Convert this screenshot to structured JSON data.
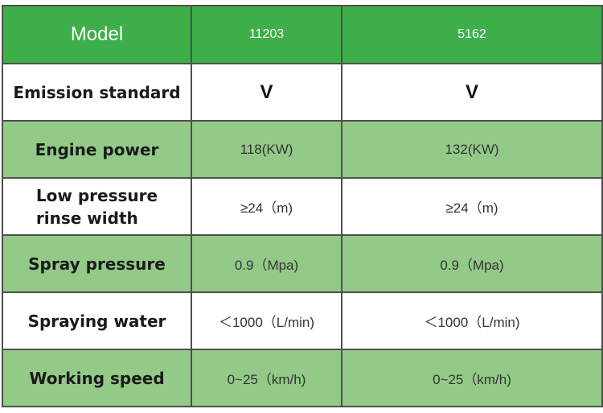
{
  "header": {
    "label": "Model",
    "models": [
      "11203",
      "5162"
    ]
  },
  "rows": [
    {
      "label": "Emission standard",
      "values": [
        "V",
        "V"
      ]
    },
    {
      "label": "Engine power",
      "values": [
        "118(KW)",
        "132(KW)"
      ]
    },
    {
      "label_lines": [
        "Low pressure",
        "rinse width"
      ],
      "values": [
        "≥24（m)",
        "≥24（m)"
      ]
    },
    {
      "label": "Spray pressure",
      "values": [
        "0.9（Mpa)",
        "0.9（Mpa)"
      ]
    },
    {
      "label": "Spraying water",
      "values": [
        "＜1000（L/min)",
        "＜1000（L/min)"
      ]
    },
    {
      "label": "Working speed",
      "values": [
        "0~25（km/h)",
        "0~25（km/h)"
      ]
    }
  ],
  "colors": {
    "header_bg": "#3eaf49",
    "shaded_row_bg": "#93ca88",
    "border": "#4f4f4f"
  }
}
